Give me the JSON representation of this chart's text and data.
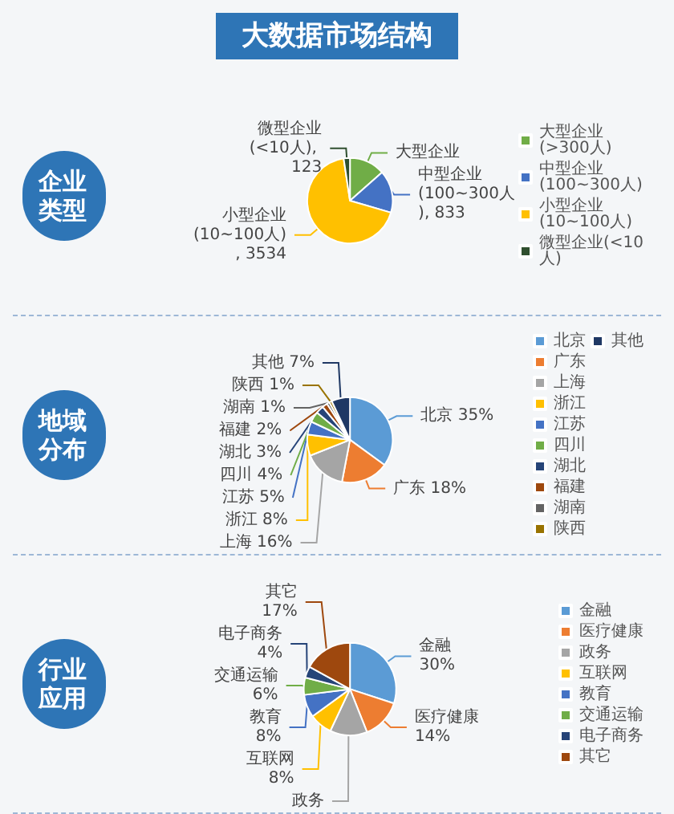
{
  "chart_data": [
    {
      "type": "other",
      "title": "大数据市场结构"
    },
    {
      "type": "pie",
      "title": "企业类型",
      "categories": [
        "大型企业(>300人)",
        "中型企业(100~300人)",
        "小型企业(10~100人)",
        "微型企业(<10人)"
      ],
      "values": [
        700,
        833,
        3534,
        123
      ],
      "colors": [
        "#70ad47",
        "#4472c4",
        "#ffc000",
        "#2f4f2f"
      ],
      "value_labels": [
        "大型企业",
        "中型企业(100~300人), 833",
        "小型企业(10~100人), 3534",
        "微型企业(<10人), 123"
      ],
      "legend": "right"
    },
    {
      "type": "pie",
      "title": "地域分布",
      "categories": [
        "北京",
        "广东",
        "上海",
        "浙江",
        "江苏",
        "四川",
        "湖北",
        "福建",
        "湖南",
        "陕西",
        "其他"
      ],
      "values": [
        35,
        18,
        16,
        8,
        5,
        4,
        3,
        2,
        1,
        1,
        7
      ],
      "colors": [
        "#5b9bd5",
        "#ed7d31",
        "#a5a5a5",
        "#ffc000",
        "#4472c4",
        "#70ad47",
        "#264478",
        "#9e480e",
        "#636363",
        "#997300",
        "#1f3864"
      ],
      "value_labels": [
        "北京 35%",
        "广东 18%",
        "上海 16%",
        "浙江 8%",
        "江苏 5%",
        "四川 4%",
        "湖北 3%",
        "福建 2%",
        "湖南 1%",
        "陕西 1%",
        "其他 7%"
      ],
      "legend": "right"
    },
    {
      "type": "pie",
      "title": "行业应用",
      "categories": [
        "金融",
        "医疗健康",
        "政务",
        "互联网",
        "教育",
        "交通运输",
        "电子商务",
        "其它"
      ],
      "values": [
        30,
        14,
        13,
        8,
        8,
        6,
        4,
        17
      ],
      "colors": [
        "#5b9bd5",
        "#ed7d31",
        "#a5a5a5",
        "#ffc000",
        "#4472c4",
        "#70ad47",
        "#264478",
        "#9e480e"
      ],
      "value_labels": [
        "金融\n30%",
        "医疗健康\n14%",
        "政务",
        "互联网\n8%",
        "教育\n8%",
        "交通运输\n6%",
        "电子商务\n4%",
        "其它\n17%"
      ],
      "legend": "right"
    }
  ]
}
